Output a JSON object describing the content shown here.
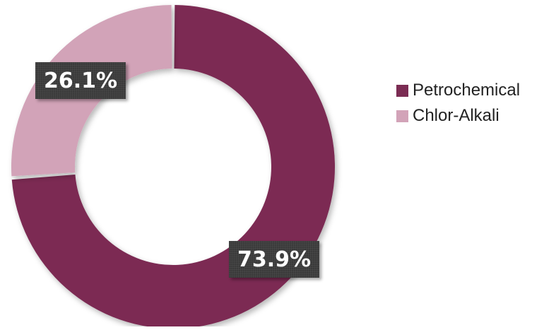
{
  "chart_data": {
    "type": "pie",
    "donut": true,
    "title": "",
    "categories": [
      "Petrochemical",
      "Chlor-Alkali"
    ],
    "values": [
      73.9,
      26.1
    ],
    "colors": [
      "#7b2c53",
      "#d2a3b8"
    ],
    "data_labels": [
      "73.9%",
      "26.1%"
    ],
    "legend_position": "right",
    "start_angle_deg": 0,
    "direction": "clockwise"
  },
  "legend": {
    "items": [
      {
        "label": "Petrochemical",
        "color": "#7b2c53"
      },
      {
        "label": "Chlor-Alkali",
        "color": "#d2a3b8"
      }
    ]
  }
}
